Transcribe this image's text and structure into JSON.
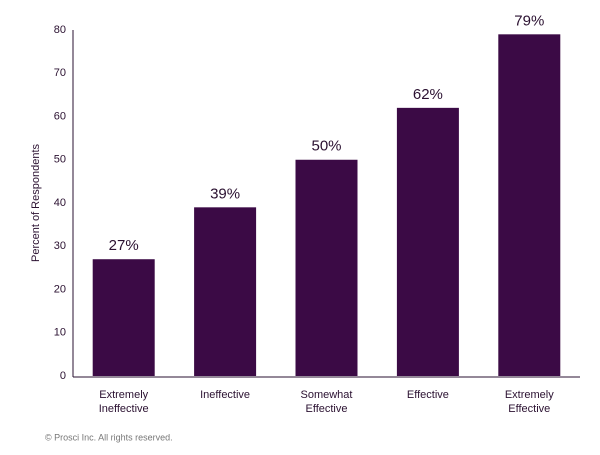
{
  "chart_data": {
    "type": "bar",
    "y_label": "Percent of Respondents",
    "categories": [
      "Extremely Ineffective",
      "Ineffective",
      "Somewhat Effective",
      "Effective",
      "Extremely Effective"
    ],
    "values": [
      27,
      39,
      50,
      62,
      79
    ],
    "value_labels": [
      "27%",
      "39%",
      "50%",
      "62%",
      "79%"
    ],
    "color": "#3b0a45",
    "ylim": [
      0,
      80
    ],
    "yticks": [
      0,
      10,
      20,
      30,
      40,
      50,
      60,
      70,
      80
    ],
    "grid": false,
    "footer": "© Prosci Inc. All rights reserved."
  }
}
